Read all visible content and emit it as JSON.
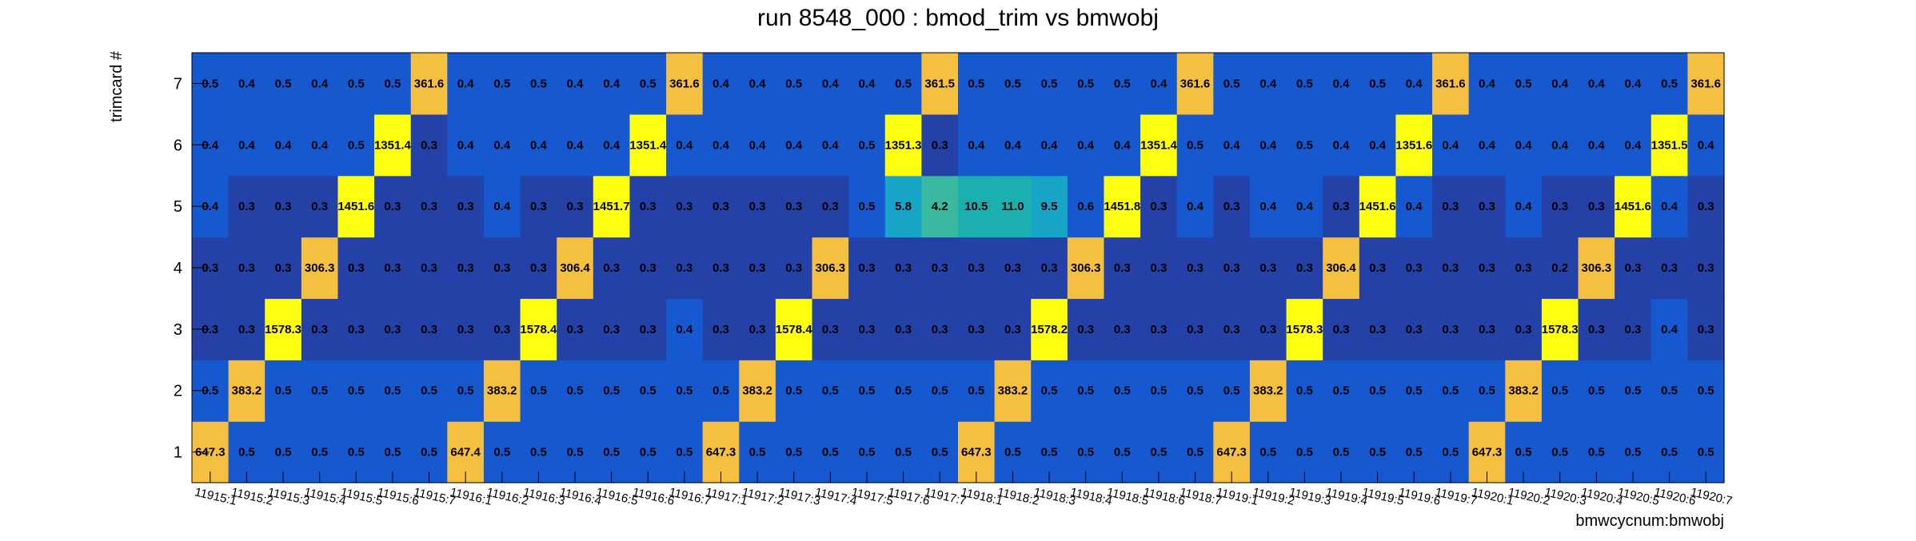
{
  "chart_data": {
    "type": "heatmap",
    "title": "run 8548_000 : bmod_trim vs bmwobj",
    "xlabel": "bmwcycnum:bmwobj",
    "ylabel": "trimcard #",
    "x_categories": [
      "11915:1",
      "11915:2",
      "11915:3",
      "11915:4",
      "11915:5",
      "11915:6",
      "11915:7",
      "11916:1",
      "11916:2",
      "11916:3",
      "11916:4",
      "11916:5",
      "11916:6",
      "11916:7",
      "11917:1",
      "11917:2",
      "11917:3",
      "11917:4",
      "11917:5",
      "11917:6",
      "11917:7",
      "11918:1",
      "11918:2",
      "11918:3",
      "11918:4",
      "11918:5",
      "11918:6",
      "11918:7",
      "11919:1",
      "11919:2",
      "11919:3",
      "11919:4",
      "11919:5",
      "11919:6",
      "11919:7",
      "11920:1",
      "11920:2",
      "11920:3",
      "11920:4",
      "11920:5",
      "11920:6",
      "11920:7"
    ],
    "y_categories": [
      "1",
      "2",
      "3",
      "4",
      "5",
      "6",
      "7"
    ],
    "values": [
      [
        "647.3",
        "0.5",
        "0.5",
        "0.5",
        "0.5",
        "0.5",
        "0.5",
        "647.4",
        "0.5",
        "0.5",
        "0.5",
        "0.5",
        "0.5",
        "0.5",
        "647.3",
        "0.5",
        "0.5",
        "0.5",
        "0.5",
        "0.5",
        "0.5",
        "647.3",
        "0.5",
        "0.5",
        "0.5",
        "0.5",
        "0.5",
        "0.5",
        "647.3",
        "0.5",
        "0.5",
        "0.5",
        "0.5",
        "0.5",
        "0.5",
        "647.3",
        "0.5",
        "0.5",
        "0.5",
        "0.5",
        "0.5",
        "0.5"
      ],
      [
        "0.5",
        "383.2",
        "0.5",
        "0.5",
        "0.5",
        "0.5",
        "0.5",
        "0.5",
        "383.2",
        "0.5",
        "0.5",
        "0.5",
        "0.5",
        "0.5",
        "0.5",
        "383.2",
        "0.5",
        "0.5",
        "0.5",
        "0.5",
        "0.5",
        "0.5",
        "383.2",
        "0.5",
        "0.5",
        "0.5",
        "0.5",
        "0.5",
        "0.5",
        "383.2",
        "0.5",
        "0.5",
        "0.5",
        "0.5",
        "0.5",
        "0.5",
        "383.2",
        "0.5",
        "0.5",
        "0.5",
        "0.5",
        "0.5"
      ],
      [
        "0.3",
        "0.3",
        "1578.3",
        "0.3",
        "0.3",
        "0.3",
        "0.3",
        "0.3",
        "0.3",
        "1578.4",
        "0.3",
        "0.3",
        "0.3",
        "0.4",
        "0.3",
        "0.3",
        "1578.4",
        "0.3",
        "0.3",
        "0.3",
        "0.3",
        "0.3",
        "0.3",
        "1578.2",
        "0.3",
        "0.3",
        "0.3",
        "0.3",
        "0.3",
        "0.3",
        "1578.3",
        "0.3",
        "0.3",
        "0.3",
        "0.3",
        "0.3",
        "0.3",
        "1578.3",
        "0.3",
        "0.3",
        "0.4",
        "0.3"
      ],
      [
        "0.3",
        "0.3",
        "0.3",
        "306.3",
        "0.3",
        "0.3",
        "0.3",
        "0.3",
        "0.3",
        "0.3",
        "306.4",
        "0.3",
        "0.3",
        "0.3",
        "0.3",
        "0.3",
        "0.3",
        "306.3",
        "0.3",
        "0.3",
        "0.3",
        "0.3",
        "0.3",
        "0.3",
        "306.3",
        "0.3",
        "0.3",
        "0.3",
        "0.3",
        "0.3",
        "0.3",
        "306.4",
        "0.3",
        "0.3",
        "0.3",
        "0.3",
        "0.3",
        "0.2",
        "306.3",
        "0.3",
        "0.3",
        "0.3"
      ],
      [
        "0.4",
        "0.3",
        "0.3",
        "0.3",
        "1451.6",
        "0.3",
        "0.3",
        "0.3",
        "0.4",
        "0.3",
        "0.3",
        "1451.7",
        "0.3",
        "0.3",
        "0.3",
        "0.3",
        "0.3",
        "0.3",
        "0.5",
        "5.8",
        "4.2",
        "10.5",
        "11.0",
        "9.5",
        "0.6",
        "1451.8",
        "0.3",
        "0.4",
        "0.3",
        "0.4",
        "0.4",
        "0.3",
        "1451.6",
        "0.4",
        "0.3",
        "0.3",
        "0.4",
        "0.3",
        "0.3",
        "1451.6",
        "0.4",
        "0.3"
      ],
      [
        "0.4",
        "0.4",
        "0.4",
        "0.4",
        "0.5",
        "1351.4",
        "0.3",
        "0.4",
        "0.4",
        "0.4",
        "0.4",
        "0.4",
        "1351.4",
        "0.4",
        "0.4",
        "0.4",
        "0.4",
        "0.4",
        "0.5",
        "1351.3",
        "0.3",
        "0.4",
        "0.4",
        "0.4",
        "0.4",
        "0.4",
        "1351.4",
        "0.5",
        "0.4",
        "0.4",
        "0.5",
        "0.4",
        "0.4",
        "1351.6",
        "0.4",
        "0.4",
        "0.4",
        "0.4",
        "0.4",
        "0.4",
        "1351.5",
        "0.4"
      ],
      [
        "0.5",
        "0.4",
        "0.5",
        "0.4",
        "0.5",
        "0.5",
        "361.6",
        "0.4",
        "0.5",
        "0.5",
        "0.4",
        "0.4",
        "0.5",
        "361.6",
        "0.4",
        "0.4",
        "0.5",
        "0.4",
        "0.4",
        "0.5",
        "361.5",
        "0.5",
        "0.5",
        "0.5",
        "0.5",
        "0.5",
        "0.4",
        "361.6",
        "0.5",
        "0.4",
        "0.5",
        "0.4",
        "0.5",
        "0.4",
        "361.6",
        "0.4",
        "0.5",
        "0.4",
        "0.4",
        "0.4",
        "0.5",
        "361.6"
      ]
    ],
    "color_scale": {
      "type": "log",
      "colors": [
        "#1a2db0",
        "#2441a8",
        "#1558d0",
        "#17a5c8",
        "#1bb0b0",
        "#3ab8a0",
        "#f5c040",
        "#f8d030",
        "#ffff10"
      ]
    },
    "grid": false,
    "legend": "none"
  }
}
